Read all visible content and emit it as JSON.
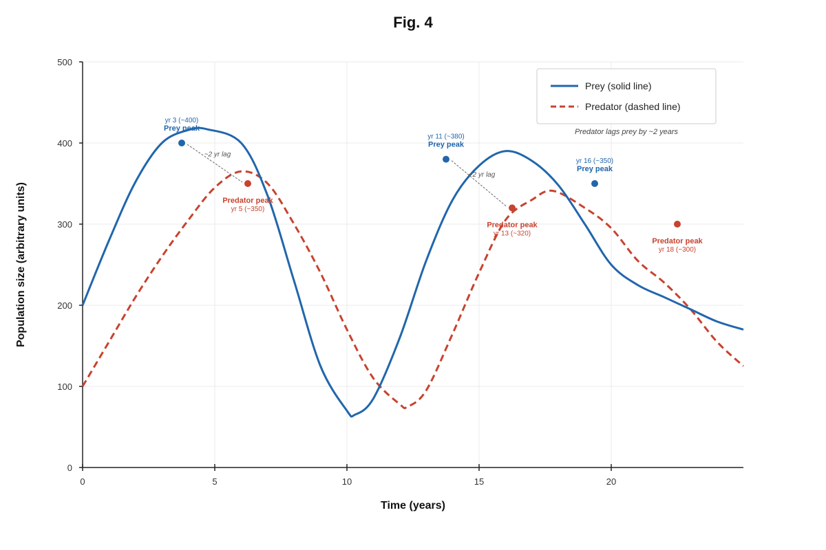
{
  "chart_data": {
    "type": "line",
    "title": "Fig. 4",
    "xlabel": "Time (years)",
    "ylabel": "Population size (arbitrary units)",
    "xlim": [
      0,
      25
    ],
    "ylim": [
      0,
      500
    ],
    "xticks": [
      0,
      5,
      10,
      15,
      20
    ],
    "yticks": [
      0,
      100,
      200,
      300,
      400,
      500
    ],
    "grid": true,
    "legend_position": "top-right",
    "legend_note": "Predator lags prey by ~2 years",
    "colors": {
      "prey": "#2166ac",
      "predator": "#c7432f"
    },
    "series": [
      {
        "key": "prey",
        "name": "Prey (solid line)",
        "style": "solid",
        "x": [
          0,
          1,
          2,
          3,
          4,
          4.7,
          6,
          7,
          8,
          9,
          10,
          10.3,
          11,
          12,
          13,
          14,
          15,
          16,
          17,
          18,
          19,
          20,
          21,
          22,
          23,
          24,
          25
        ],
        "y": [
          200,
          280,
          352,
          400,
          416,
          417,
          400,
          335,
          230,
          125,
          70,
          65,
          85,
          160,
          255,
          330,
          372,
          390,
          378,
          348,
          300,
          250,
          225,
          210,
          195,
          180,
          170
        ]
      },
      {
        "key": "predator",
        "name": "Predator (dashed line)",
        "style": "dashed",
        "x": [
          0,
          1,
          2,
          3,
          4,
          5,
          6,
          7,
          8,
          9,
          10,
          11,
          12,
          12.3,
          13,
          14,
          15,
          16,
          17,
          17.8,
          19,
          20,
          21,
          22,
          23,
          24,
          25
        ],
        "y": [
          100,
          155,
          210,
          260,
          305,
          345,
          365,
          350,
          300,
          240,
          170,
          110,
          78,
          75,
          95,
          165,
          240,
          305,
          330,
          341,
          320,
          295,
          255,
          228,
          195,
          155,
          125
        ]
      }
    ],
    "lag_label": "~2 yr lag",
    "annotations": [
      {
        "series": "prey",
        "x": 3.75,
        "y": 400,
        "name": "Prey peak",
        "detail": "yr 3 (~400)"
      },
      {
        "series": "predator",
        "x": 6.25,
        "y": 350,
        "name": "Predator peak",
        "detail": "yr 5 (~350)"
      },
      {
        "series": "prey",
        "x": 13.75,
        "y": 380,
        "name": "Prey peak",
        "detail": "yr 11 (~380)"
      },
      {
        "series": "predator",
        "x": 16.25,
        "y": 320,
        "name": "Predator peak",
        "detail": "yr 13 (~320)"
      },
      {
        "series": "prey",
        "x": 19.375,
        "y": 350,
        "name": "Prey peak",
        "detail": "yr 16 (~350)"
      },
      {
        "series": "predator",
        "x": 22.5,
        "y": 300,
        "name": "Predator peak",
        "detail": "yr 18 (~300)"
      }
    ],
    "lags": [
      {
        "from": 0,
        "to": 1
      },
      {
        "from": 2,
        "to": 3
      }
    ]
  }
}
